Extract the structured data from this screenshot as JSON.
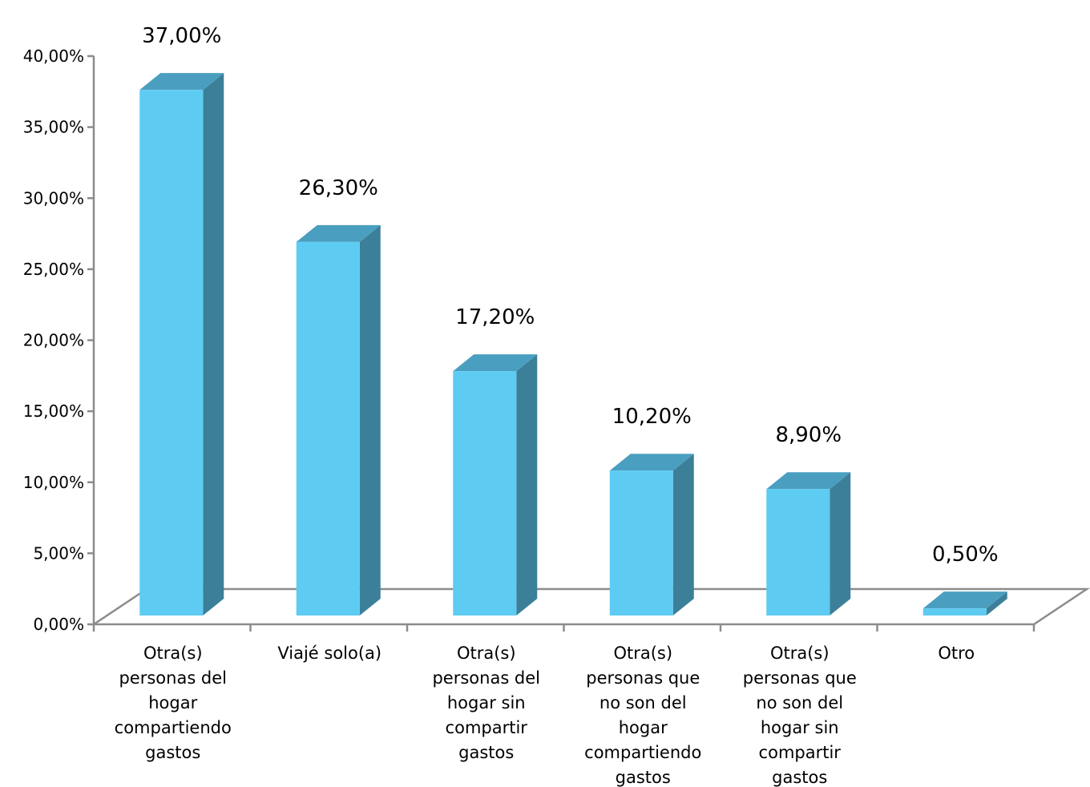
{
  "chart_data": {
    "type": "bar",
    "three_d": true,
    "categories": [
      "Otra(s) personas del hogar compartiendo gastos",
      "Viajé solo(a)",
      "Otra(s) personas del hogar sin compartir gastos",
      "Otra(s) personas que no son del hogar compartiendo gastos",
      "Otra(s) personas que no son del hogar sin compartir gastos",
      "Otro"
    ],
    "category_lines": [
      [
        "Otra(s)",
        "personas del",
        "hogar",
        "compartiendo",
        "gastos"
      ],
      [
        "Viajé solo(a)"
      ],
      [
        "Otra(s)",
        "personas del",
        "hogar sin",
        "compartir",
        "gastos"
      ],
      [
        "Otra(s)",
        "personas que",
        "no son del",
        "hogar",
        "compartiendo",
        "gastos"
      ],
      [
        "Otra(s)",
        "personas que",
        "no son del",
        "hogar sin",
        "compartir",
        "gastos"
      ],
      [
        "Otro"
      ]
    ],
    "values": [
      37.0,
      26.3,
      17.2,
      10.2,
      8.9,
      0.5
    ],
    "data_labels": [
      "37,00%",
      "26,30%",
      "17,20%",
      "10,20%",
      "8,90%",
      "0,50%"
    ],
    "y_ticks": [
      0,
      5,
      10,
      15,
      20,
      25,
      30,
      35,
      40
    ],
    "y_tick_labels": [
      "0,00%",
      "5,00%",
      "10,00%",
      "15,00%",
      "20,00%",
      "25,00%",
      "30,00%",
      "35,00%",
      "40,00%"
    ],
    "ylim": [
      0,
      40
    ],
    "title": "",
    "xlabel": "",
    "ylabel": "",
    "legend": false,
    "grid": false,
    "colors": {
      "bar_front": "#5ecbf2",
      "bar_top": "#4a9fc0",
      "bar_side": "#3c7f99",
      "axis": "#8c8c8c"
    }
  }
}
